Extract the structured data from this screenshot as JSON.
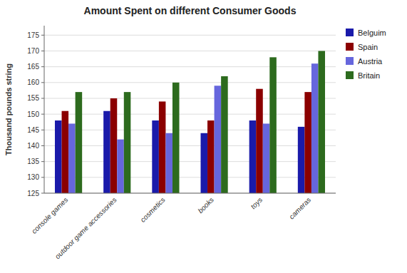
{
  "chart_data": {
    "type": "bar",
    "title": "Amount Spent on different Consumer Goods",
    "ylabel": "Thousand pounds string",
    "categories": [
      "console games",
      "outdoor game accessories",
      "cosmetics",
      "books",
      "toys",
      "cameras"
    ],
    "series": [
      {
        "name": "Belguim",
        "color": "#1a1aaa",
        "values": [
          148,
          151,
          148,
          144,
          148,
          146
        ]
      },
      {
        "name": "Spain",
        "color": "#8b0000",
        "values": [
          151,
          155,
          154,
          148,
          158,
          157
        ]
      },
      {
        "name": "Austria",
        "color": "#6666dd",
        "values": [
          147,
          142,
          144,
          159,
          147,
          166
        ]
      },
      {
        "name": "Britain",
        "color": "#2d6b1e",
        "values": [
          157,
          157,
          160,
          162,
          168,
          170
        ]
      }
    ],
    "ylim": [
      125,
      178
    ],
    "yticks": [
      125,
      130,
      135,
      140,
      145,
      150,
      155,
      160,
      165,
      170,
      175
    ],
    "grid": true,
    "legend": "right"
  }
}
